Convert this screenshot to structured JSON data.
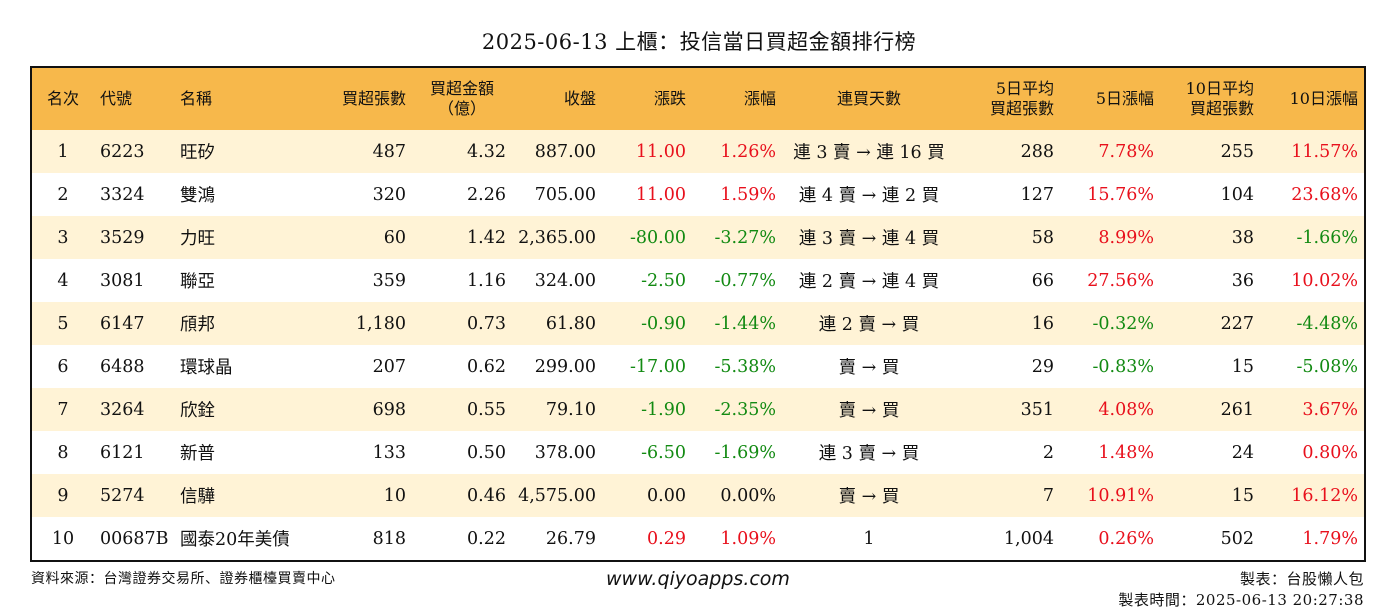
{
  "title": "2025-06-13 上櫃：投信當日買超金額排行榜",
  "headers": {
    "rank": "名次",
    "code": "代號",
    "name": "名稱",
    "buy_shares": "買超張數",
    "buy_amount_line1": "買超金額",
    "buy_amount_line2": "（億）",
    "close": "收盤",
    "change": "漲跌",
    "change_pct": "漲幅",
    "streak": "連買天數",
    "avg5_line1": "5日平均",
    "avg5_line2": "買超張數",
    "pct5": "5日漲幅",
    "avg10_line1": "10日平均",
    "avg10_line2": "買超張數",
    "pct10": "10日漲幅"
  },
  "rows": [
    {
      "rank": "1",
      "code": "6223",
      "name": "旺矽",
      "buy_shares": "487",
      "buy_amount": "4.32",
      "close": "887.00",
      "change": "11.00",
      "change_pct": "1.26%",
      "streak": "連 3 賣 → 連 16 買",
      "avg5": "288",
      "pct5": "7.78%",
      "avg10": "255",
      "pct10": "11.57%"
    },
    {
      "rank": "2",
      "code": "3324",
      "name": "雙鴻",
      "buy_shares": "320",
      "buy_amount": "2.26",
      "close": "705.00",
      "change": "11.00",
      "change_pct": "1.59%",
      "streak": "連 4 賣 → 連 2 買",
      "avg5": "127",
      "pct5": "15.76%",
      "avg10": "104",
      "pct10": "23.68%"
    },
    {
      "rank": "3",
      "code": "3529",
      "name": "力旺",
      "buy_shares": "60",
      "buy_amount": "1.42",
      "close": "2,365.00",
      "change": "-80.00",
      "change_pct": "-3.27%",
      "streak": "連 3 賣 → 連 4 買",
      "avg5": "58",
      "pct5": "8.99%",
      "avg10": "38",
      "pct10": "-1.66%"
    },
    {
      "rank": "4",
      "code": "3081",
      "name": "聯亞",
      "buy_shares": "359",
      "buy_amount": "1.16",
      "close": "324.00",
      "change": "-2.50",
      "change_pct": "-0.77%",
      "streak": "連 2 賣 → 連 4 買",
      "avg5": "66",
      "pct5": "27.56%",
      "avg10": "36",
      "pct10": "10.02%"
    },
    {
      "rank": "5",
      "code": "6147",
      "name": "頎邦",
      "buy_shares": "1,180",
      "buy_amount": "0.73",
      "close": "61.80",
      "change": "-0.90",
      "change_pct": "-1.44%",
      "streak": "連 2 賣 → 買",
      "avg5": "16",
      "pct5": "-0.32%",
      "avg10": "227",
      "pct10": "-4.48%"
    },
    {
      "rank": "6",
      "code": "6488",
      "name": "環球晶",
      "buy_shares": "207",
      "buy_amount": "0.62",
      "close": "299.00",
      "change": "-17.00",
      "change_pct": "-5.38%",
      "streak": "賣 → 買",
      "avg5": "29",
      "pct5": "-0.83%",
      "avg10": "15",
      "pct10": "-5.08%"
    },
    {
      "rank": "7",
      "code": "3264",
      "name": "欣銓",
      "buy_shares": "698",
      "buy_amount": "0.55",
      "close": "79.10",
      "change": "-1.90",
      "change_pct": "-2.35%",
      "streak": "賣 → 買",
      "avg5": "351",
      "pct5": "4.08%",
      "avg10": "261",
      "pct10": "3.67%"
    },
    {
      "rank": "8",
      "code": "6121",
      "name": "新普",
      "buy_shares": "133",
      "buy_amount": "0.50",
      "close": "378.00",
      "change": "-6.50",
      "change_pct": "-1.69%",
      "streak": "連 3 賣 → 買",
      "avg5": "2",
      "pct5": "1.48%",
      "avg10": "24",
      "pct10": "0.80%"
    },
    {
      "rank": "9",
      "code": "5274",
      "name": "信驊",
      "buy_shares": "10",
      "buy_amount": "0.46",
      "close": "4,575.00",
      "change": "0.00",
      "change_pct": "0.00%",
      "streak": "賣 → 買",
      "avg5": "7",
      "pct5": "10.91%",
      "avg10": "15",
      "pct10": "16.12%"
    },
    {
      "rank": "10",
      "code": "00687B",
      "name": "國泰20年美債",
      "buy_shares": "818",
      "buy_amount": "0.22",
      "close": "26.79",
      "change": "0.29",
      "change_pct": "1.09%",
      "streak": "1",
      "avg5": "1,004",
      "pct5": "0.26%",
      "avg10": "502",
      "pct10": "1.79%"
    }
  ],
  "colors": {
    "header_bg": "#f7b84b",
    "odd_row_bg": "#fff3d6",
    "positive": "#e8101c",
    "negative": "#128a12"
  },
  "footer": {
    "source": "資料來源：台灣證券交易所、證券櫃檯買賣中心",
    "website": "www.qiyoapps.com",
    "author": "製表：台股懶人包",
    "time": "製表時間：2025-06-13 20:27:38"
  }
}
